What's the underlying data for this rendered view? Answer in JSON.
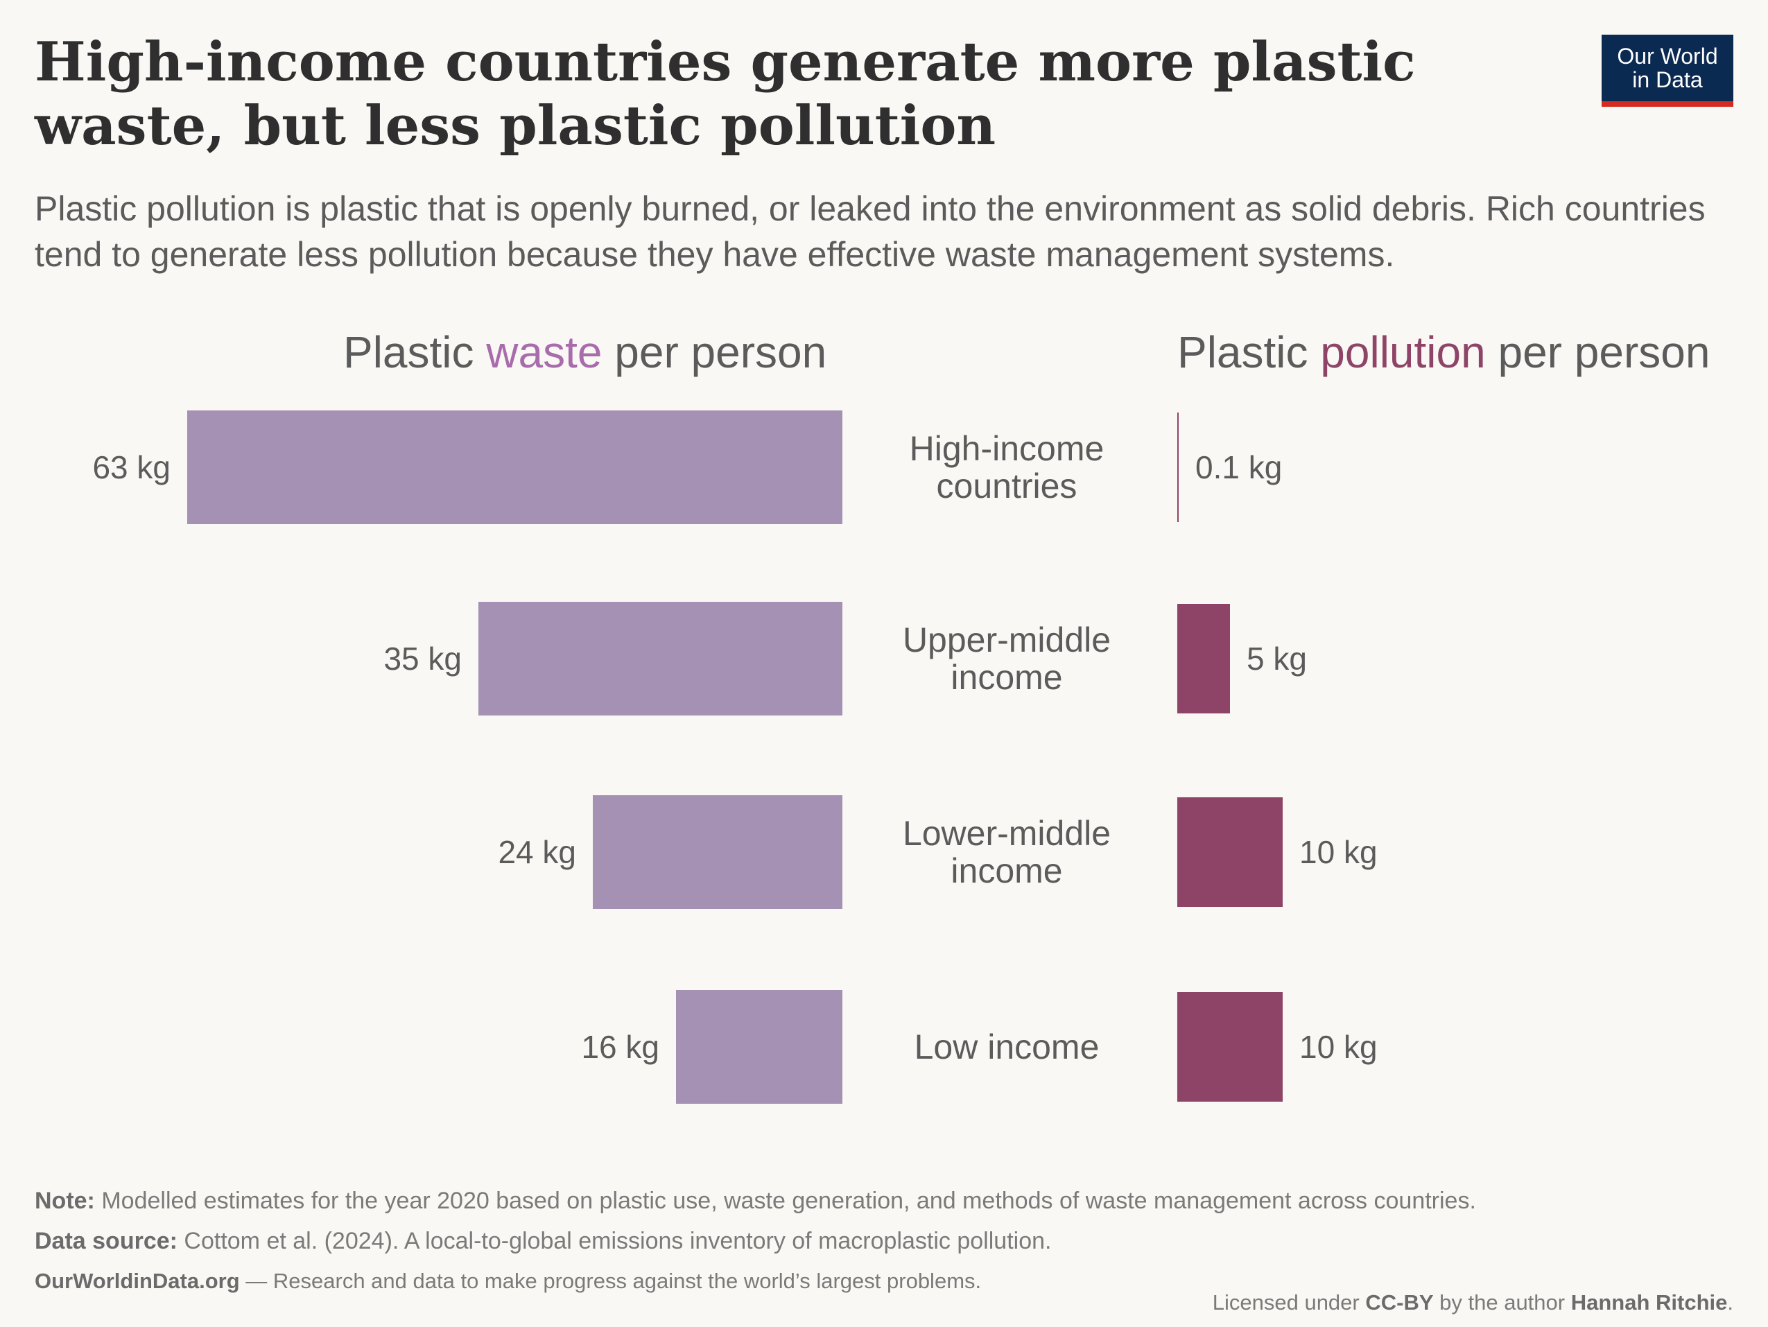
{
  "title": "High-income countries generate more plastic waste, but less plastic pollution",
  "subtitle": "Plastic pollution is plastic that is openly burned, or leaked into the environment as solid debris. Rich countries tend to generate less pollution because they have effective waste management systems.",
  "logo": {
    "line1": "Our World",
    "line2": "in Data"
  },
  "panels": {
    "waste": {
      "prefix": "Plastic ",
      "highlight": "waste",
      "suffix": " per person"
    },
    "pollution": {
      "prefix": "Plastic ",
      "highlight": "pollution",
      "suffix": " per person"
    }
  },
  "chart_data": {
    "type": "bar",
    "categories": [
      "High-income countries",
      "Upper-middle income",
      "Lower-middle income",
      "Low income"
    ],
    "category_lines": [
      [
        "High-income",
        "countries"
      ],
      [
        "Upper-middle",
        "income"
      ],
      [
        "Lower-middle",
        "income"
      ],
      [
        "Low income"
      ]
    ],
    "series": [
      {
        "name": "Plastic waste per person",
        "values": [
          63,
          35,
          24,
          16
        ],
        "labels": [
          "63 kg",
          "35 kg",
          "24 kg",
          "16 kg"
        ],
        "color": "#a491b3"
      },
      {
        "name": "Plastic pollution per person",
        "values": [
          0.1,
          5,
          10,
          10
        ],
        "labels": [
          "0.1 kg",
          "5 kg",
          "10 kg",
          "10 kg"
        ],
        "color": "#8e4466"
      }
    ],
    "unit": "kg",
    "highlight_colors": {
      "waste": "#a86bab",
      "pollution": "#8e4466"
    }
  },
  "footer": {
    "note_label": "Note:",
    "note_text": " Modelled estimates for the year 2020 based on plastic use, waste generation, and methods of waste management across countries.",
    "source_label": "Data source:",
    "source_text": " Cottom et al. (2024). A local-to-global emissions inventory of macroplastic pollution.",
    "site": "OurWorldinData.org",
    "site_text": " — Research and data to make progress against the world’s largest problems.",
    "license_prefix": "Licensed under ",
    "license": "CC-BY",
    "license_mid": " by the author ",
    "author": "Hannah Ritchie",
    "license_end": "."
  }
}
